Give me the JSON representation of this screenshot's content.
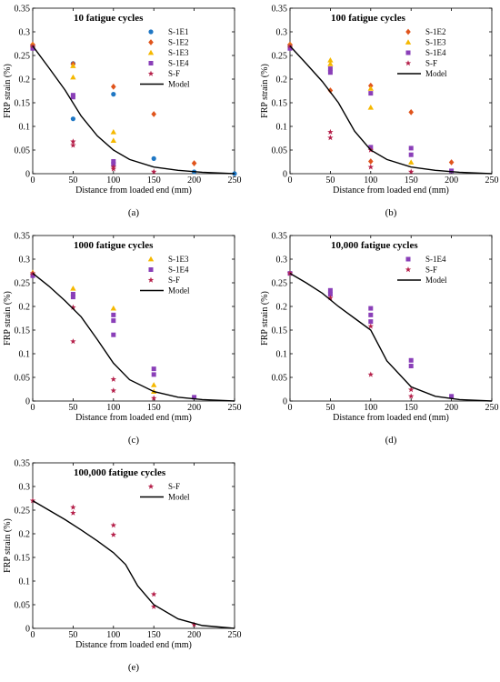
{
  "colors": {
    "S-1E1": "#1f77c4",
    "S-1E2": "#e0541c",
    "S-1E3": "#f5b800",
    "S-1E4": "#8a3fb8",
    "S-F": "#b5204a",
    "Model": "#000000"
  },
  "markers": {
    "S-1E1": "circle",
    "S-1E2": "diamond",
    "S-1E3": "triangle",
    "S-1E4": "square",
    "S-F": "star"
  },
  "chart_data": [
    {
      "type": "scatter",
      "caption": "(a)",
      "title": "10 fatigue cycles",
      "xlabel": "Distance from loaded end (mm)",
      "ylabel": "FRP strain (%)",
      "xlim": [
        0,
        250
      ],
      "ylim": [
        0,
        0.35
      ],
      "xticks": [
        "0",
        "50",
        "100",
        "150",
        "200",
        "250"
      ],
      "yticks": [
        "0",
        "0.05",
        "0.1",
        "0.15",
        "0.2",
        "0.25",
        "0.3",
        "0.35"
      ],
      "legend": "top-right",
      "series": [
        {
          "name": "S-1E1",
          "x": [
            0,
            50,
            50,
            100,
            150,
            200,
            250
          ],
          "y": [
            0.27,
            0.233,
            0.116,
            0.168,
            0.032,
            0.004,
            0
          ]
        },
        {
          "name": "S-1E2",
          "x": [
            0,
            50,
            100,
            150,
            200
          ],
          "y": [
            0.273,
            0.232,
            0.184,
            0.126,
            0.022
          ]
        },
        {
          "name": "S-1E3",
          "x": [
            0,
            50,
            50,
            100,
            100
          ],
          "y": [
            0.272,
            0.228,
            0.204,
            0.088,
            0.07
          ]
        },
        {
          "name": "S-1E4",
          "x": [
            0,
            50,
            50,
            100,
            100
          ],
          "y": [
            0.265,
            0.166,
            0.162,
            0.026,
            0.02
          ]
        },
        {
          "name": "S-F",
          "x": [
            0,
            50,
            50,
            100,
            100,
            150
          ],
          "y": [
            0.27,
            0.068,
            0.06,
            0.014,
            0.01,
            0.004
          ]
        },
        {
          "name": "Model",
          "x": [
            0,
            20,
            40,
            60,
            80,
            100,
            120,
            150,
            180,
            210,
            250
          ],
          "y": [
            0.27,
            0.224,
            0.177,
            0.122,
            0.08,
            0.05,
            0.03,
            0.014,
            0.007,
            0.003,
            0
          ]
        }
      ]
    },
    {
      "type": "scatter",
      "caption": "(b)",
      "title": "100 fatigue cycles",
      "xlabel": "Distance from loaded end (mm)",
      "ylabel": "FRP strain (%)",
      "xlim": [
        0,
        250
      ],
      "ylim": [
        0,
        0.35
      ],
      "xticks": [
        "0",
        "50",
        "100",
        "150",
        "200",
        "250"
      ],
      "yticks": [
        "0",
        "0.05",
        "0.1",
        "0.15",
        "0.2",
        "0.25",
        "0.3",
        "0.35"
      ],
      "legend": "top-right",
      "series": [
        {
          "name": "S-1E2",
          "x": [
            0,
            50,
            100,
            100,
            150,
            200
          ],
          "y": [
            0.273,
            0.176,
            0.186,
            0.026,
            0.13,
            0.024
          ]
        },
        {
          "name": "S-1E3",
          "x": [
            0,
            50,
            50,
            100,
            100,
            150
          ],
          "y": [
            0.272,
            0.24,
            0.232,
            0.18,
            0.14,
            0.024
          ]
        },
        {
          "name": "S-1E4",
          "x": [
            0,
            50,
            50,
            100,
            100,
            150,
            150,
            200
          ],
          "y": [
            0.265,
            0.222,
            0.214,
            0.17,
            0.056,
            0.054,
            0.04,
            0.006
          ]
        },
        {
          "name": "S-F",
          "x": [
            0,
            50,
            50,
            100,
            100,
            150
          ],
          "y": [
            0.27,
            0.088,
            0.076,
            0.05,
            0.014,
            0.004
          ]
        },
        {
          "name": "Model",
          "x": [
            0,
            20,
            40,
            60,
            80,
            100,
            120,
            150,
            180,
            210,
            250
          ],
          "y": [
            0.27,
            0.233,
            0.195,
            0.15,
            0.09,
            0.05,
            0.03,
            0.014,
            0.007,
            0.003,
            0
          ]
        }
      ]
    },
    {
      "type": "scatter",
      "caption": "(c)",
      "title": "1000 fatigue cycles",
      "xlabel": "Distance from loaded end (mm)",
      "ylabel": "FRP strain (%)",
      "xlim": [
        0,
        250
      ],
      "ylim": [
        0,
        0.35
      ],
      "xticks": [
        "0",
        "50",
        "100",
        "150",
        "200",
        "250"
      ],
      "yticks": [
        "0",
        "0.05",
        "0.1",
        "0.15",
        "0.2",
        "0.25",
        "0.3",
        "0.35"
      ],
      "legend": "top-right",
      "series": [
        {
          "name": "S-1E3",
          "x": [
            0,
            50,
            100,
            150,
            150
          ],
          "y": [
            0.272,
            0.238,
            0.196,
            0.034,
            0.02
          ]
        },
        {
          "name": "S-1E4",
          "x": [
            0,
            50,
            50,
            100,
            100,
            100,
            150,
            150,
            200
          ],
          "y": [
            0.265,
            0.226,
            0.22,
            0.182,
            0.17,
            0.14,
            0.068,
            0.056,
            0.008
          ]
        },
        {
          "name": "S-F",
          "x": [
            0,
            50,
            50,
            100,
            100,
            150
          ],
          "y": [
            0.27,
            0.198,
            0.126,
            0.046,
            0.022,
            0.006
          ]
        },
        {
          "name": "Model",
          "x": [
            0,
            20,
            40,
            60,
            80,
            100,
            120,
            150,
            180,
            210,
            250
          ],
          "y": [
            0.27,
            0.243,
            0.212,
            0.178,
            0.13,
            0.08,
            0.045,
            0.02,
            0.008,
            0.003,
            0
          ]
        }
      ]
    },
    {
      "type": "scatter",
      "caption": "(d)",
      "title": "10,000 fatigue cycles",
      "xlabel": "Distance from loaded end (mm)",
      "ylabel": "FRP strain (%)",
      "xlim": [
        0,
        250
      ],
      "ylim": [
        0,
        0.35
      ],
      "xticks": [
        "0",
        "50",
        "100",
        "150",
        "200",
        "250"
      ],
      "yticks": [
        "0",
        "0.05",
        "0.1",
        "0.15",
        "0.2",
        "0.25",
        "0.3",
        "0.35"
      ],
      "legend": "top-right",
      "series": [
        {
          "name": "S-1E4",
          "x": [
            0,
            50,
            50,
            100,
            100,
            100,
            150,
            150,
            200
          ],
          "y": [
            0.27,
            0.234,
            0.226,
            0.196,
            0.182,
            0.168,
            0.086,
            0.074,
            0.01
          ]
        },
        {
          "name": "S-F",
          "x": [
            0,
            50,
            100,
            100,
            150,
            150
          ],
          "y": [
            0.27,
            0.218,
            0.158,
            0.056,
            0.024,
            0.01
          ]
        },
        {
          "name": "Model",
          "x": [
            0,
            20,
            40,
            60,
            80,
            100,
            120,
            150,
            180,
            210,
            250
          ],
          "y": [
            0.27,
            0.25,
            0.228,
            0.2,
            0.175,
            0.15,
            0.085,
            0.03,
            0.01,
            0.003,
            0
          ]
        }
      ]
    },
    {
      "type": "scatter",
      "caption": "(e)",
      "title": "100,000 fatigue cycles",
      "xlabel": "Distance from loaded end (mm)",
      "ylabel": "FRP strain (%)",
      "xlim": [
        0,
        250
      ],
      "ylim": [
        0,
        0.35
      ],
      "xticks": [
        "0",
        "50",
        "100",
        "150",
        "200",
        "250"
      ],
      "yticks": [
        "0",
        "0.05",
        "0.1",
        "0.15",
        "0.2",
        "0.25",
        "0.3",
        "0.35"
      ],
      "legend": "top-right",
      "series": [
        {
          "name": "S-F",
          "x": [
            0,
            50,
            50,
            100,
            100,
            150,
            150,
            200
          ],
          "y": [
            0.27,
            0.256,
            0.244,
            0.218,
            0.198,
            0.072,
            0.046,
            0.008
          ]
        },
        {
          "name": "Model",
          "x": [
            0,
            20,
            40,
            60,
            80,
            100,
            115,
            130,
            150,
            180,
            210,
            250
          ],
          "y": [
            0.27,
            0.25,
            0.23,
            0.208,
            0.185,
            0.16,
            0.135,
            0.09,
            0.05,
            0.02,
            0.006,
            0
          ]
        }
      ]
    }
  ]
}
